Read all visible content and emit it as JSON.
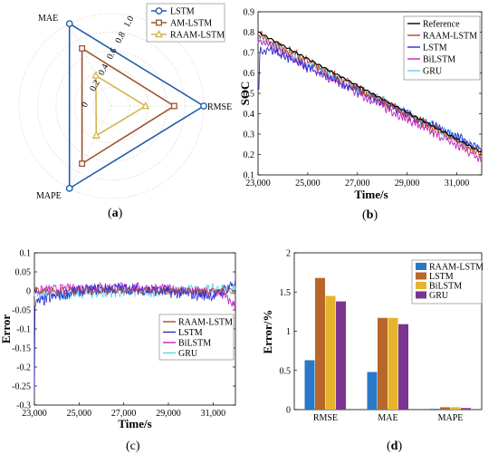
{
  "chart_data": [
    {
      "panel": "(a)",
      "type": "radar",
      "axes": [
        "MAE",
        "RMSE",
        "MAPE"
      ],
      "radial_ticks": [
        "0",
        "0.2",
        "0.4",
        "0.6",
        "0.8",
        "1.0"
      ],
      "rmax": 1.0,
      "series": [
        {
          "name": "LSTM",
          "values": [
            1.0,
            1.0,
            1.0
          ],
          "color": "#1f5fa8",
          "marker": "circle"
        },
        {
          "name": "AM-LSTM",
          "values": [
            0.7,
            0.68,
            0.7
          ],
          "color": "#a0522d",
          "marker": "square"
        },
        {
          "name": "RAAM-LSTM",
          "values": [
            0.37,
            0.37,
            0.36
          ],
          "color": "#d4b44a",
          "marker": "triangle"
        }
      ],
      "legend": "top-right"
    },
    {
      "panel": "(b)",
      "type": "line",
      "xlabel": "Time/s",
      "ylabel": "SOC",
      "xlim": [
        23000,
        32000
      ],
      "ylim": [
        0.1,
        0.9
      ],
      "xticks": [
        "23,000",
        "25,000",
        "27,000",
        "29,000",
        "31,000"
      ],
      "yticks": [
        "0.1",
        "0.2",
        "0.3",
        "0.4",
        "0.5",
        "0.6",
        "0.7",
        "0.8",
        "0.9"
      ],
      "series": [
        {
          "name": "Reference",
          "color": "#000000",
          "values": [
            [
              23000,
              0.8
            ],
            [
              32000,
              0.21
            ]
          ]
        },
        {
          "name": "RAAM-LSTM",
          "color": "#b5452b",
          "values": [
            [
              23000,
              0.79
            ],
            [
              32000,
              0.2
            ]
          ]
        },
        {
          "name": "LSTM",
          "color": "#2c2ccf",
          "values": [
            [
              23000,
              0.74
            ],
            [
              32000,
              0.23
            ]
          ]
        },
        {
          "name": "BiLSTM",
          "color": "#c020c0",
          "values": [
            [
              23000,
              0.76
            ],
            [
              32000,
              0.18
            ]
          ]
        },
        {
          "name": "GRU",
          "color": "#5fd0e8",
          "values": [
            [
              23000,
              0.77
            ],
            [
              32000,
              0.22
            ]
          ]
        }
      ],
      "legend": "top-right"
    },
    {
      "panel": "(c)",
      "type": "line",
      "xlabel": "Time/s",
      "ylabel": "Error",
      "xlim": [
        23000,
        32000
      ],
      "ylim": [
        -0.3,
        0.1
      ],
      "xticks": [
        "23,000",
        "25,000",
        "27,000",
        "29,000",
        "31,000"
      ],
      "yticks": [
        "-0.3",
        "-0.25",
        "-0.2",
        "-0.15",
        "-0.1",
        "-0.05",
        "0",
        "0.05",
        "0.1"
      ],
      "series": [
        {
          "name": "RAAM-LSTM",
          "color": "#b5452b"
        },
        {
          "name": "LSTM",
          "color": "#2c2ccf"
        },
        {
          "name": "BiLSTM",
          "color": "#c020c0"
        },
        {
          "name": "GRU",
          "color": "#5fd0e8"
        }
      ],
      "legend": "bottom-right"
    },
    {
      "panel": "(d)",
      "type": "bar",
      "ylabel": "Error/%",
      "ylim": [
        0,
        2
      ],
      "yticks": [
        "0",
        "0.5",
        "1",
        "1.5",
        "2"
      ],
      "categories": [
        "RMSE",
        "MAE",
        "MAPE"
      ],
      "series": [
        {
          "name": "RAAM-LSTM",
          "color": "#2a78c8",
          "values": [
            0.63,
            0.48,
            0.01
          ]
        },
        {
          "name": "LSTM",
          "color": "#b8672a",
          "values": [
            1.68,
            1.17,
            0.03
          ]
        },
        {
          "name": "BiLSTM",
          "color": "#e6b42c",
          "values": [
            1.45,
            1.17,
            0.03
          ]
        },
        {
          "name": "GRU",
          "color": "#7a3590",
          "values": [
            1.38,
            1.09,
            0.02
          ]
        }
      ],
      "legend": "top-right"
    }
  ]
}
